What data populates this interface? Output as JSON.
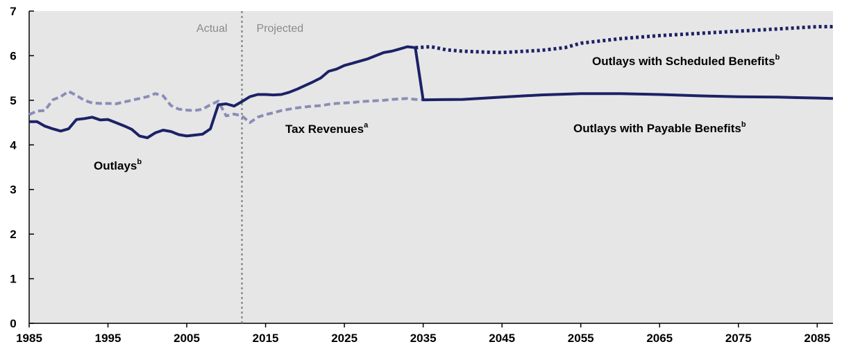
{
  "chart_data": {
    "type": "line",
    "x_range": [
      1985,
      2087
    ],
    "ylim": [
      0,
      7
    ],
    "x_ticks": [
      1985,
      1995,
      2005,
      2015,
      2025,
      2035,
      2045,
      2055,
      2065,
      2075,
      2085
    ],
    "y_ticks": [
      0,
      1,
      2,
      3,
      4,
      5,
      6,
      7
    ],
    "grid": false,
    "background": "#e6e6e6",
    "divider_year": 2012,
    "region_labels": {
      "actual": "Actual",
      "projected": "Projected"
    },
    "series": [
      {
        "name": "Outlays",
        "label_sup": "b",
        "style": "solid",
        "color": "#1b2266",
        "points": [
          [
            1985,
            4.52
          ],
          [
            1986,
            4.52
          ],
          [
            1987,
            4.42
          ],
          [
            1988,
            4.36
          ],
          [
            1989,
            4.31
          ],
          [
            1990,
            4.36
          ],
          [
            1991,
            4.57
          ],
          [
            1992,
            4.59
          ],
          [
            1993,
            4.62
          ],
          [
            1994,
            4.56
          ],
          [
            1995,
            4.57
          ],
          [
            1996,
            4.5
          ],
          [
            1997,
            4.43
          ],
          [
            1998,
            4.35
          ],
          [
            1999,
            4.2
          ],
          [
            2000,
            4.16
          ],
          [
            2001,
            4.27
          ],
          [
            2002,
            4.33
          ],
          [
            2003,
            4.3
          ],
          [
            2004,
            4.23
          ],
          [
            2005,
            4.2
          ],
          [
            2006,
            4.22
          ],
          [
            2007,
            4.24
          ],
          [
            2008,
            4.36
          ],
          [
            2009,
            4.9
          ],
          [
            2010,
            4.92
          ],
          [
            2011,
            4.87
          ],
          [
            2012,
            4.97
          ],
          [
            2013,
            5.08
          ],
          [
            2014,
            5.13
          ],
          [
            2015,
            5.13
          ],
          [
            2016,
            5.12
          ],
          [
            2017,
            5.13
          ],
          [
            2018,
            5.18
          ],
          [
            2019,
            5.25
          ],
          [
            2020,
            5.33
          ],
          [
            2021,
            5.41
          ],
          [
            2022,
            5.5
          ],
          [
            2023,
            5.65
          ],
          [
            2024,
            5.7
          ],
          [
            2025,
            5.78
          ],
          [
            2026,
            5.83
          ],
          [
            2027,
            5.88
          ],
          [
            2028,
            5.93
          ],
          [
            2029,
            6.0
          ],
          [
            2030,
            6.07
          ],
          [
            2031,
            6.1
          ],
          [
            2032,
            6.15
          ],
          [
            2033,
            6.2
          ],
          [
            2034,
            6.18
          ]
        ]
      },
      {
        "name": "Outlays with Payable Benefits",
        "label_sup": "b",
        "style": "solid",
        "color": "#1b2266",
        "points": [
          [
            2034,
            6.18
          ],
          [
            2035,
            5.01
          ],
          [
            2040,
            5.02
          ],
          [
            2045,
            5.07
          ],
          [
            2050,
            5.12
          ],
          [
            2055,
            5.15
          ],
          [
            2060,
            5.15
          ],
          [
            2065,
            5.13
          ],
          [
            2070,
            5.1
          ],
          [
            2075,
            5.08
          ],
          [
            2080,
            5.07
          ],
          [
            2085,
            5.05
          ],
          [
            2087,
            5.04
          ]
        ]
      },
      {
        "name": "Outlays with Scheduled Benefits",
        "label_sup": "b",
        "style": "dotted",
        "color": "#1b2266",
        "points": [
          [
            2034,
            6.18
          ],
          [
            2036,
            6.2
          ],
          [
            2038,
            6.13
          ],
          [
            2040,
            6.1
          ],
          [
            2043,
            6.08
          ],
          [
            2045,
            6.07
          ],
          [
            2050,
            6.12
          ],
          [
            2053,
            6.18
          ],
          [
            2055,
            6.28
          ],
          [
            2060,
            6.38
          ],
          [
            2065,
            6.45
          ],
          [
            2070,
            6.5
          ],
          [
            2075,
            6.55
          ],
          [
            2080,
            6.6
          ],
          [
            2085,
            6.65
          ],
          [
            2087,
            6.65
          ]
        ]
      },
      {
        "name": "Tax Revenues",
        "label_sup": "a",
        "style": "dashed",
        "color": "#8b8db7",
        "points": [
          [
            1985,
            4.68
          ],
          [
            1986,
            4.76
          ],
          [
            1987,
            4.77
          ],
          [
            1988,
            5.01
          ],
          [
            1989,
            5.08
          ],
          [
            1990,
            5.2
          ],
          [
            1991,
            5.11
          ],
          [
            1992,
            5.0
          ],
          [
            1993,
            4.94
          ],
          [
            1994,
            4.93
          ],
          [
            1995,
            4.93
          ],
          [
            1996,
            4.92
          ],
          [
            1997,
            4.96
          ],
          [
            1998,
            5.0
          ],
          [
            1999,
            5.04
          ],
          [
            2000,
            5.08
          ],
          [
            2001,
            5.15
          ],
          [
            2002,
            5.1
          ],
          [
            2003,
            4.88
          ],
          [
            2004,
            4.8
          ],
          [
            2005,
            4.78
          ],
          [
            2006,
            4.77
          ],
          [
            2007,
            4.8
          ],
          [
            2008,
            4.9
          ],
          [
            2009,
            4.98
          ],
          [
            2010,
            4.65
          ],
          [
            2011,
            4.69
          ],
          [
            2012,
            4.65
          ],
          [
            2013,
            4.5
          ],
          [
            2014,
            4.62
          ],
          [
            2015,
            4.68
          ],
          [
            2016,
            4.72
          ],
          [
            2017,
            4.77
          ],
          [
            2018,
            4.8
          ],
          [
            2019,
            4.83
          ],
          [
            2020,
            4.85
          ],
          [
            2021,
            4.87
          ],
          [
            2022,
            4.88
          ],
          [
            2023,
            4.91
          ],
          [
            2024,
            4.93
          ],
          [
            2025,
            4.94
          ],
          [
            2026,
            4.95
          ],
          [
            2027,
            4.97
          ],
          [
            2028,
            4.98
          ],
          [
            2029,
            4.99
          ],
          [
            2030,
            5.0
          ],
          [
            2031,
            5.02
          ],
          [
            2032,
            5.03
          ],
          [
            2033,
            5.04
          ],
          [
            2034,
            5.02
          ],
          [
            2035,
            5.01
          ]
        ]
      }
    ]
  }
}
